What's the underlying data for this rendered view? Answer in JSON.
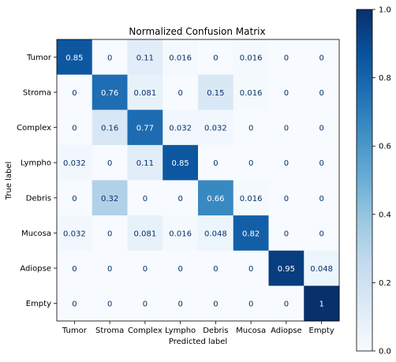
{
  "chart_data": {
    "type": "heatmap",
    "title": "Normalized Confusion Matrix",
    "xlabel": "Predicted label",
    "ylabel": "True label",
    "x_categories": [
      "Tumor",
      "Stroma",
      "Complex",
      "Lympho",
      "Debris",
      "Mucosa",
      "Adiopse",
      "Empty"
    ],
    "y_categories": [
      "Tumor",
      "Stroma",
      "Complex",
      "Lympho",
      "Debris",
      "Mucosa",
      "Adiopse",
      "Empty"
    ],
    "values": [
      [
        0.85,
        0,
        0.11,
        0.016,
        0,
        0.016,
        0,
        0
      ],
      [
        0,
        0.76,
        0.081,
        0,
        0.15,
        0.016,
        0,
        0
      ],
      [
        0,
        0.16,
        0.77,
        0.032,
        0.032,
        0,
        0,
        0
      ],
      [
        0.032,
        0,
        0.11,
        0.85,
        0,
        0,
        0,
        0
      ],
      [
        0,
        0.32,
        0,
        0,
        0.66,
        0.016,
        0,
        0
      ],
      [
        0.032,
        0,
        0.081,
        0.016,
        0.048,
        0.82,
        0,
        0
      ],
      [
        0,
        0,
        0,
        0,
        0,
        0,
        0.95,
        0.048
      ],
      [
        0,
        0,
        0,
        0,
        0,
        0,
        0,
        1
      ]
    ],
    "colorbar": {
      "range": [
        0,
        1
      ],
      "ticks": [
        "0.0",
        "0.2",
        "0.4",
        "0.6",
        "0.8",
        "1.0"
      ],
      "colormap": "Blues"
    }
  }
}
